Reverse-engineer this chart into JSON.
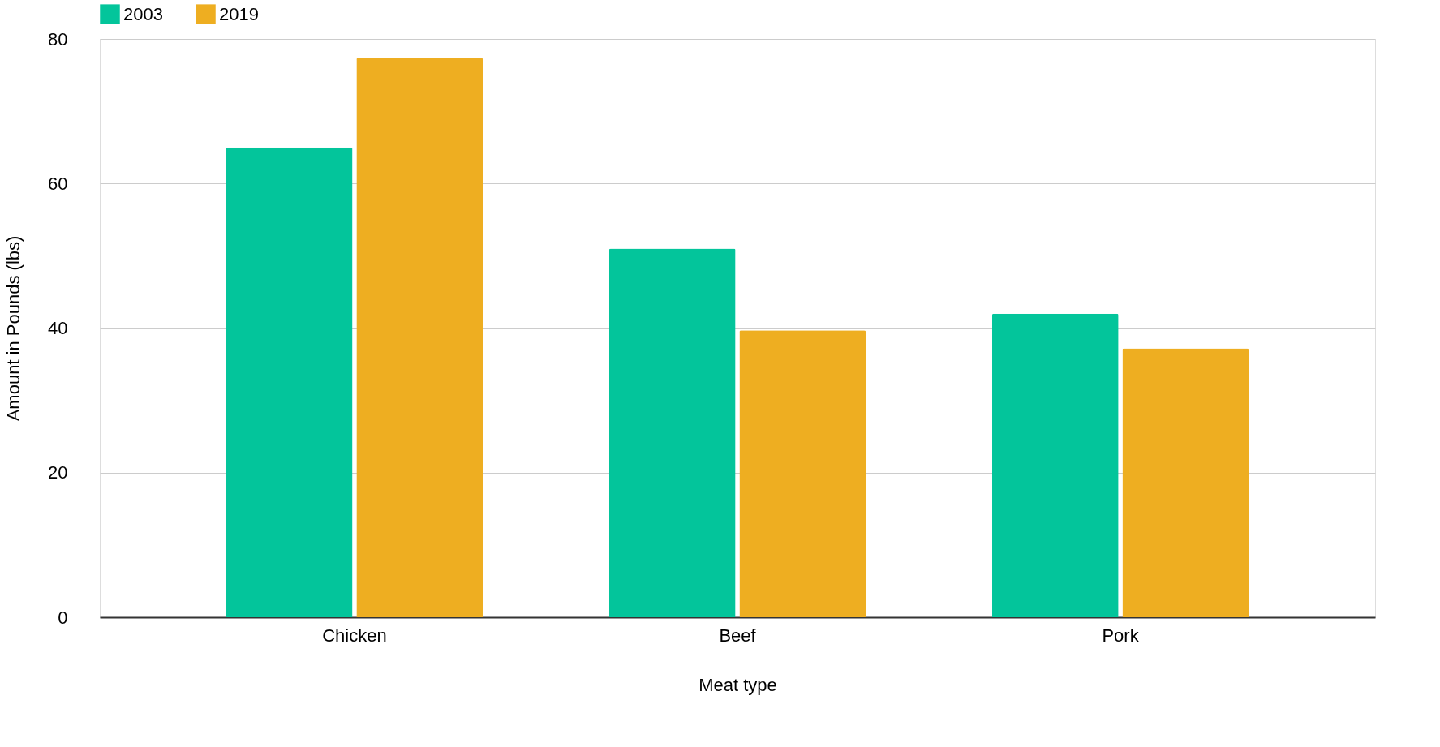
{
  "chart_data": {
    "type": "bar",
    "xlabel": "Meat type",
    "ylabel": "Amount in Pounds (lbs)",
    "categories": [
      "Chicken",
      "Beef",
      "Pork"
    ],
    "series": [
      {
        "name": "2003",
        "color": "#03c59b",
        "values": [
          65.0,
          51.0,
          42.0
        ]
      },
      {
        "name": "2019",
        "color": "#eeae21",
        "values": [
          77.4,
          39.7,
          37.2
        ]
      }
    ],
    "ylim": [
      0,
      80
    ],
    "yticks": [
      0,
      20,
      40,
      60,
      80
    ],
    "grid": "y",
    "legend": "top"
  }
}
